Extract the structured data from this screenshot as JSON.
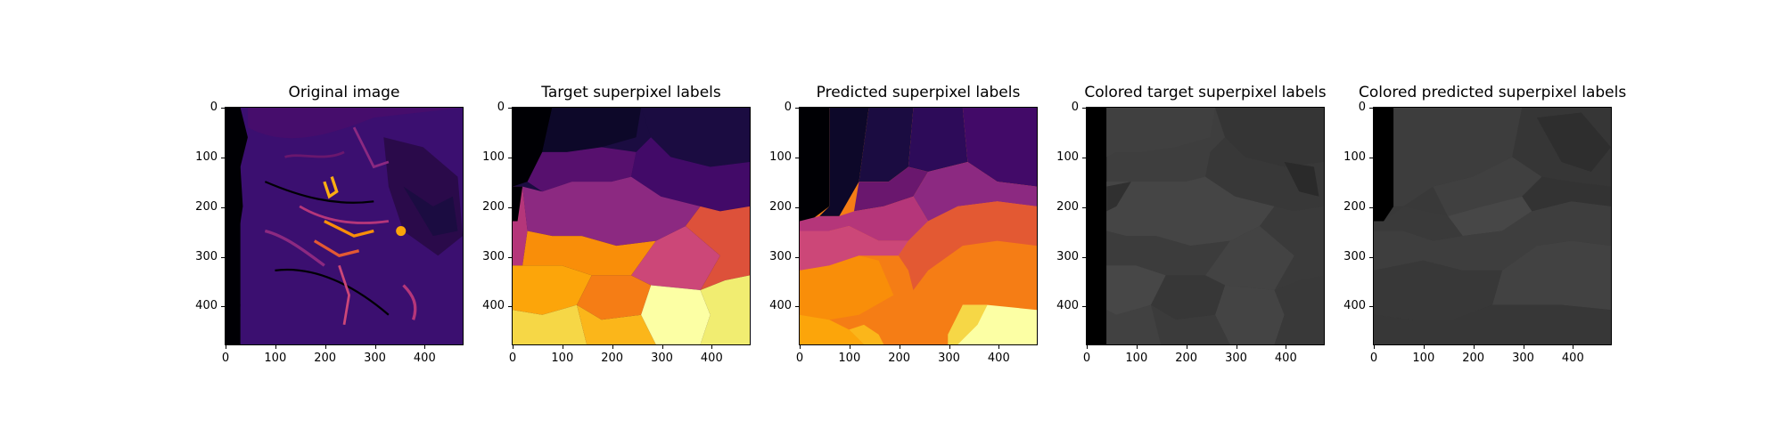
{
  "panels": [
    {
      "title": "Original image",
      "colormap": "inferno"
    },
    {
      "title": "Target superpixel labels",
      "colormap": "inferno"
    },
    {
      "title": "Predicted superpixel labels",
      "colormap": "inferno"
    },
    {
      "title": "Colored target superpixel labels",
      "colormap": "gray"
    },
    {
      "title": "Colored predicted superpixel labels",
      "colormap": "gray"
    }
  ],
  "axis": {
    "x_ticks": [
      "0",
      "100",
      "200",
      "300",
      "400"
    ],
    "y_ticks": [
      "0",
      "100",
      "200",
      "300",
      "400"
    ],
    "x_tick_values": [
      0,
      100,
      200,
      300,
      400
    ],
    "y_tick_values": [
      0,
      100,
      200,
      300,
      400
    ],
    "extent": [
      0,
      480
    ]
  }
}
